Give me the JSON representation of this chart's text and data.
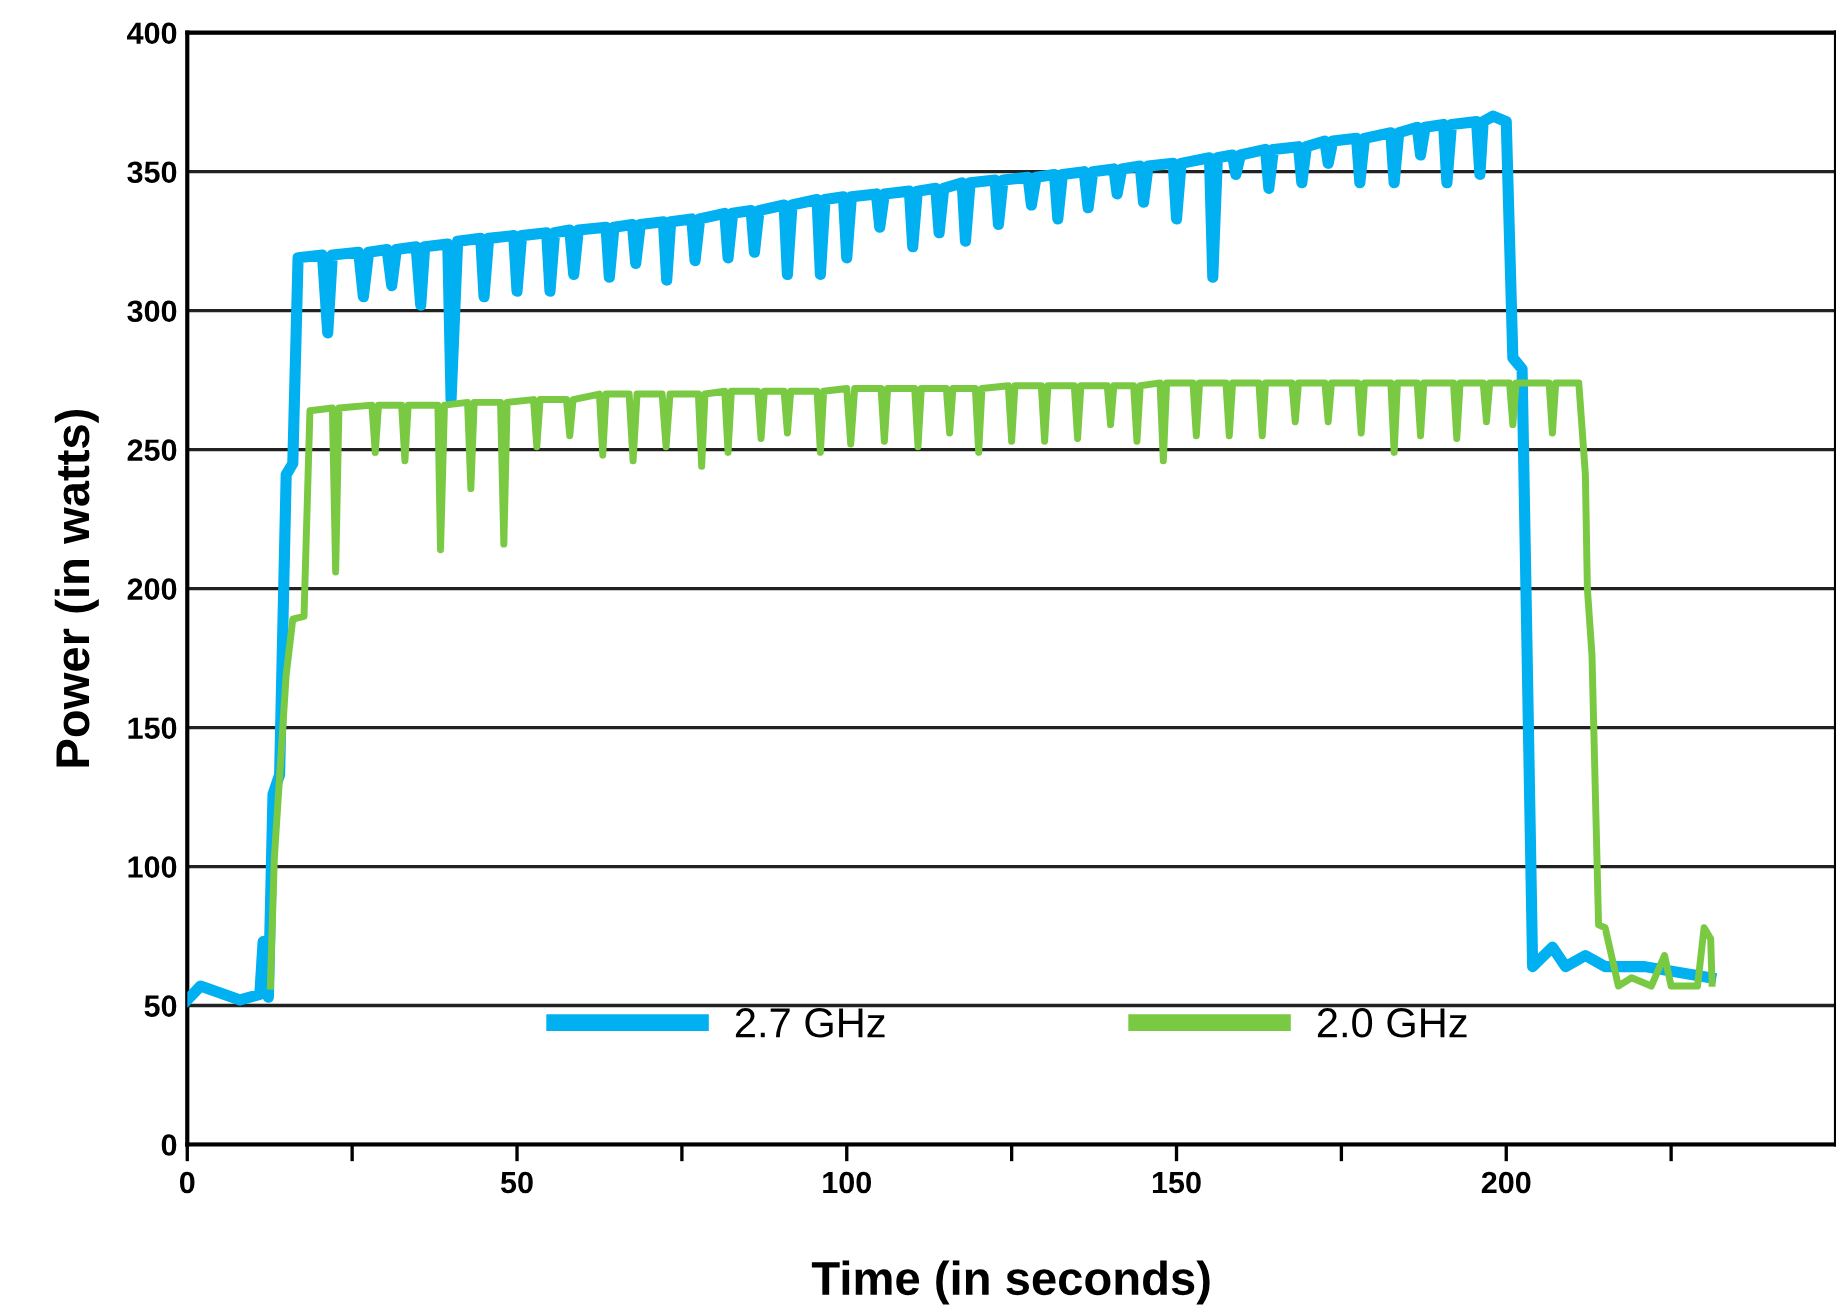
{
  "chart_data": {
    "type": "line",
    "xlabel": "Time (in seconds)",
    "ylabel": "Power (in watts)",
    "xlim": [
      0,
      250
    ],
    "ylim": [
      0,
      400
    ],
    "xticks": [
      0,
      {
        "value": 25,
        "label": null
      },
      50,
      {
        "value": 75,
        "label": null
      },
      100,
      {
        "value": 125,
        "label": null
      },
      150,
      {
        "value": 175,
        "label": null
      },
      200,
      {
        "value": 225,
        "label": null
      }
    ],
    "yticks": [
      0,
      50,
      100,
      150,
      200,
      250,
      300,
      350,
      400
    ],
    "grid": "y",
    "legend": "bottom",
    "marker": "none",
    "line_style": "solid",
    "series": [
      {
        "name": "2.7 GHz",
        "color": "#00b0f0",
        "x": [
          0,
          2,
          8,
          11,
          11.5,
          12.3,
          13,
          14,
          15,
          16,
          16.8,
          20.5,
          21.3,
          22,
          26,
          26.7,
          27.5,
          30.3,
          31,
          31.7,
          34.7,
          35.4,
          36,
          39.5,
          40,
          41,
          44.5,
          45,
          45.7,
          49.5,
          50,
          50.7,
          54.5,
          55,
          55.7,
          58,
          58.6,
          59.3,
          63.5,
          64,
          64.7,
          67.5,
          68,
          68.7,
          72.2,
          72.7,
          73.3,
          76.5,
          77,
          77.7,
          81.5,
          82,
          82.7,
          85.5,
          86,
          86.7,
          90.5,
          91,
          91.7,
          95.5,
          96,
          96.7,
          99.5,
          100,
          100.7,
          104.5,
          105,
          105.7,
          109.5,
          110,
          110.7,
          113.5,
          114,
          114.7,
          117.5,
          118,
          118.7,
          122.5,
          123,
          123.7,
          127.5,
          128,
          128.7,
          131.5,
          132,
          132.7,
          136,
          136.6,
          137.3,
          140.5,
          141,
          141.7,
          144.5,
          145,
          145.7,
          149.5,
          150,
          150.7,
          155,
          155.5,
          156.2,
          158.5,
          159,
          159.7,
          163.5,
          164,
          164.7,
          168.5,
          169,
          169.7,
          172.5,
          173,
          173.7,
          177.3,
          177.8,
          178.5,
          182.5,
          183,
          183.7,
          186.5,
          187,
          187.7,
          190.5,
          191,
          191.7,
          195.5,
          196,
          196.5,
          198,
          200,
          201,
          202.4,
          204,
          207,
          209,
          212,
          215,
          221,
          231
        ],
        "values": [
          52,
          57,
          52,
          54,
          73,
          53,
          126,
          133,
          241,
          245,
          319,
          320,
          292,
          320,
          321,
          305,
          321,
          322,
          309,
          322,
          323,
          302,
          323,
          324,
          268,
          325,
          326,
          305,
          326,
          327,
          307,
          327,
          328,
          307,
          328,
          329,
          313,
          329,
          330,
          312,
          330,
          331,
          317,
          331,
          332,
          311,
          332,
          333,
          318,
          333,
          335,
          319,
          335,
          336,
          321,
          336,
          338,
          313,
          338,
          340,
          313,
          340,
          341,
          319,
          341,
          342,
          330,
          342,
          343,
          323,
          343,
          344,
          328,
          344,
          346,
          325,
          346,
          347,
          331,
          347,
          348,
          338,
          348,
          349,
          333,
          349,
          350,
          337,
          350,
          351,
          342,
          351,
          352,
          339,
          352,
          353,
          333,
          353,
          355,
          312,
          355,
          356,
          349,
          356,
          358,
          344,
          358,
          359,
          346,
          359,
          361,
          353,
          361,
          362,
          346,
          362,
          364,
          346,
          364,
          366,
          356,
          366,
          367,
          346,
          367,
          368,
          349,
          368,
          370,
          368,
          283,
          279,
          64,
          71,
          64,
          68,
          64,
          64,
          60
        ]
      },
      {
        "name": "2.0 GHz",
        "color": "#7ac943",
        "x": [
          12.6,
          13.2,
          15,
          16,
          17.7,
          18.6,
          22,
          22.5,
          23,
          28,
          28.5,
          29,
          32.5,
          33,
          33.5,
          38,
          38.4,
          39,
          42.5,
          43,
          43.5,
          47.5,
          48,
          48.5,
          52.5,
          53,
          53.5,
          57.5,
          58,
          58.5,
          62.5,
          63,
          63.5,
          67,
          67.6,
          68.2,
          72,
          72.6,
          73.2,
          77.5,
          78,
          78.5,
          81.5,
          82,
          82.5,
          86.5,
          87,
          87.5,
          90.5,
          91,
          91.5,
          95.5,
          96,
          96.5,
          100,
          100.6,
          101.2,
          105.2,
          105.7,
          106.2,
          110.3,
          110.8,
          111.3,
          115.1,
          115.6,
          116.1,
          119.5,
          120,
          120.5,
          124.5,
          125,
          125.5,
          129.5,
          130,
          130.5,
          134.5,
          135,
          135.5,
          139.5,
          140,
          140.5,
          143.5,
          144,
          144.5,
          147.5,
          148,
          148.5,
          152.5,
          153,
          153.5,
          157.5,
          158,
          158.5,
          162.5,
          163,
          163.5,
          167.5,
          168,
          168.5,
          172.5,
          173,
          173.5,
          177.5,
          178,
          178.5,
          182.5,
          183,
          183.5,
          186.5,
          187,
          187.5,
          192,
          192.5,
          193,
          196.5,
          197,
          197.5,
          200.5,
          201,
          201.5,
          206.5,
          207,
          207.5,
          211,
          212,
          212.3,
          213,
          214,
          215,
          217,
          219,
          222,
          224,
          225,
          229,
          230,
          231,
          231.2
        ],
        "values": [
          57,
          103,
          169,
          189,
          190,
          264,
          265,
          206,
          265,
          266,
          249,
          266,
          266,
          246,
          266,
          266,
          214,
          266,
          267,
          236,
          267,
          267,
          216,
          267,
          268,
          251,
          268,
          268,
          255,
          268,
          270,
          248,
          270,
          270,
          246,
          270,
          270,
          251,
          270,
          270,
          244,
          270,
          271,
          249,
          271,
          271,
          254,
          271,
          271,
          256,
          271,
          271,
          249,
          271,
          272,
          252,
          272,
          272,
          253,
          272,
          272,
          251,
          272,
          272,
          256,
          272,
          272,
          249,
          272,
          273,
          253,
          273,
          273,
          253,
          273,
          273,
          254,
          273,
          273,
          259,
          273,
          273,
          253,
          273,
          274,
          246,
          274,
          274,
          255,
          274,
          274,
          255,
          274,
          274,
          255,
          274,
          274,
          260,
          274,
          274,
          260,
          274,
          274,
          256,
          274,
          274,
          249,
          274,
          274,
          255,
          274,
          274,
          254,
          274,
          274,
          260,
          274,
          274,
          259,
          274,
          274,
          256,
          274,
          274,
          241,
          200,
          176,
          79,
          78,
          57,
          60,
          57,
          68,
          57,
          57,
          78,
          74,
          58
        ]
      }
    ]
  }
}
